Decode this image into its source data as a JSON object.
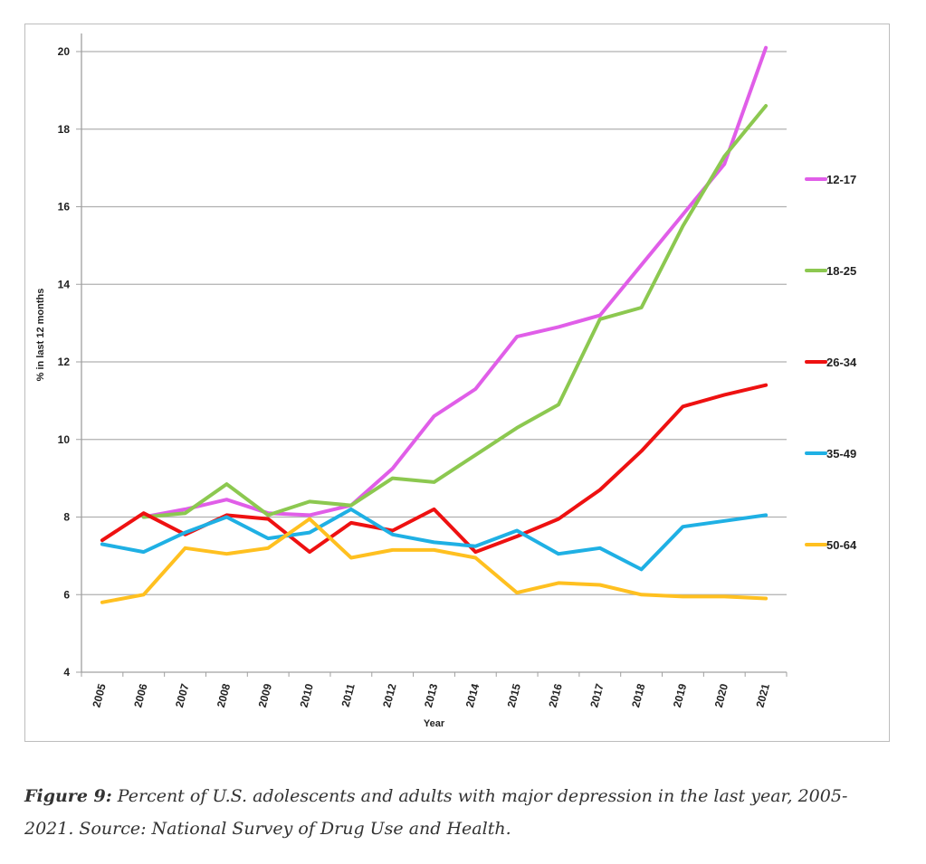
{
  "chart_data": {
    "type": "line",
    "title": "",
    "xlabel": "Year",
    "ylabel": "% in last 12 months",
    "ylim": [
      4,
      20
    ],
    "yticks": [
      4,
      6,
      8,
      10,
      12,
      14,
      16,
      18,
      20
    ],
    "grid": true,
    "legend_position": "right",
    "x": [
      "2005",
      "2006",
      "2007",
      "2008",
      "2009",
      "2010",
      "2011",
      "2012",
      "2013",
      "2014",
      "2015",
      "2016",
      "2017",
      "2018",
      "2019",
      "2020",
      "2021"
    ],
    "series": [
      {
        "name": "12-17",
        "color": "#e05ee8",
        "values": [
          null,
          8.0,
          8.2,
          8.45,
          8.1,
          8.05,
          8.3,
          9.25,
          10.6,
          11.3,
          12.65,
          12.9,
          13.2,
          14.5,
          15.8,
          17.1,
          20.1
        ]
      },
      {
        "name": "18-25",
        "color": "#8cc850",
        "values": [
          null,
          8.0,
          8.1,
          8.85,
          8.05,
          8.4,
          8.3,
          9.0,
          8.9,
          9.6,
          10.3,
          10.9,
          13.1,
          13.4,
          15.5,
          17.3,
          18.6
        ]
      },
      {
        "name": "26-34",
        "color": "#ee1111",
        "values": [
          7.4,
          8.1,
          7.55,
          8.05,
          7.95,
          7.1,
          7.85,
          7.65,
          8.2,
          7.1,
          7.5,
          7.95,
          8.7,
          9.7,
          10.85,
          11.15,
          11.4
        ]
      },
      {
        "name": "35-49",
        "color": "#1fb0e4",
        "values": [
          7.3,
          7.1,
          7.6,
          8.0,
          7.45,
          7.6,
          8.2,
          7.55,
          7.35,
          7.25,
          7.65,
          7.05,
          7.2,
          6.65,
          7.75,
          7.9,
          8.05
        ]
      },
      {
        "name": "50-64",
        "color": "#ffc020",
        "values": [
          5.8,
          6.0,
          7.2,
          7.05,
          7.2,
          7.95,
          6.95,
          7.15,
          7.15,
          6.95,
          6.05,
          6.3,
          6.25,
          6.0,
          5.95,
          5.95,
          5.9
        ]
      }
    ]
  },
  "caption": {
    "label": "Figure 9:",
    "text": " Percent of U.S. adolescents and adults with major depression in the last year, 2005-2021. Source: National Survey of Drug Use and Health."
  }
}
